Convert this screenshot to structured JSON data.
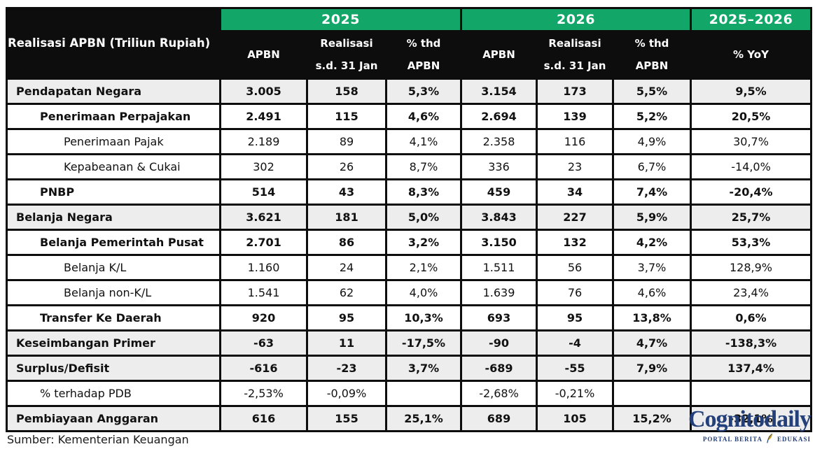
{
  "table": {
    "corner_label": "Realisasi APBN (Triliun Rupiah)",
    "year_groups": [
      "2025",
      "2026",
      "2025–2026"
    ],
    "sub_columns": [
      "APBN",
      "Realisasi\ns.d. 31 Jan",
      "% thd\nAPBN",
      "APBN",
      "Realisasi\ns.d. 31 Jan",
      "% thd\nAPBN",
      "% YoY"
    ]
  },
  "chart_data": {
    "type": "table",
    "title": "Realisasi APBN (Triliun Rupiah)",
    "column_groups": [
      "2025",
      "2026",
      "2025–2026"
    ],
    "columns": [
      "APBN",
      "Realisasi s.d. 31 Jan",
      "% thd APBN",
      "APBN",
      "Realisasi s.d. 31 Jan",
      "% thd APBN",
      "% YoY"
    ],
    "rows": [
      {
        "label": "Pendapatan Negara",
        "indent": 0,
        "bold": true,
        "shaded": true,
        "values": [
          "3.005",
          "158",
          "5,3%",
          "3.154",
          "173",
          "5,5%",
          "9,5%"
        ]
      },
      {
        "label": "Penerimaan Perpajakan",
        "indent": 1,
        "bold": true,
        "shaded": false,
        "values": [
          "2.491",
          "115",
          "4,6%",
          "2.694",
          "139",
          "5,2%",
          "20,5%"
        ]
      },
      {
        "label": "Penerimaan Pajak",
        "indent": 2,
        "bold": false,
        "shaded": false,
        "values": [
          "2.189",
          "89",
          "4,1%",
          "2.358",
          "116",
          "4,9%",
          "30,7%"
        ]
      },
      {
        "label": "Kepabeanan & Cukai",
        "indent": 2,
        "bold": false,
        "shaded": false,
        "values": [
          "302",
          "26",
          "8,7%",
          "336",
          "23",
          "6,7%",
          "-14,0%"
        ]
      },
      {
        "label": "PNBP",
        "indent": 1,
        "bold": true,
        "shaded": false,
        "values": [
          "514",
          "43",
          "8,3%",
          "459",
          "34",
          "7,4%",
          "-20,4%"
        ]
      },
      {
        "label": "Belanja Negara",
        "indent": 0,
        "bold": true,
        "shaded": true,
        "values": [
          "3.621",
          "181",
          "5,0%",
          "3.843",
          "227",
          "5,9%",
          "25,7%"
        ]
      },
      {
        "label": "Belanja Pemerintah Pusat",
        "indent": 1,
        "bold": true,
        "shaded": false,
        "values": [
          "2.701",
          "86",
          "3,2%",
          "3.150",
          "132",
          "4,2%",
          "53,3%"
        ]
      },
      {
        "label": "Belanja K/L",
        "indent": 2,
        "bold": false,
        "shaded": false,
        "values": [
          "1.160",
          "24",
          "2,1%",
          "1.511",
          "56",
          "3,7%",
          "128,9%"
        ]
      },
      {
        "label": "Belanja non-K/L",
        "indent": 2,
        "bold": false,
        "shaded": false,
        "values": [
          "1.541",
          "62",
          "4,0%",
          "1.639",
          "76",
          "4,6%",
          "23,4%"
        ]
      },
      {
        "label": "Transfer Ke Daerah",
        "indent": 1,
        "bold": true,
        "shaded": false,
        "values": [
          "920",
          "95",
          "10,3%",
          "693",
          "95",
          "13,8%",
          "0,6%"
        ]
      },
      {
        "label": "Keseimbangan Primer",
        "indent": 0,
        "bold": true,
        "shaded": true,
        "values": [
          "-63",
          "11",
          "-17,5%",
          "-90",
          "-4",
          "4,7%",
          "-138,3%"
        ]
      },
      {
        "label": "Surplus/Defisit",
        "indent": 0,
        "bold": true,
        "shaded": true,
        "values": [
          "-616",
          "-23",
          "3,7%",
          "-689",
          "-55",
          "7,9%",
          "137,4%"
        ]
      },
      {
        "label": "% terhadap PDB",
        "indent": 1,
        "bold": false,
        "shaded": false,
        "values": [
          "-2,53%",
          "-0,09%",
          "",
          "-2,68%",
          "-0,21%",
          "",
          ""
        ]
      },
      {
        "label": "Pembiayaan Anggaran",
        "indent": 0,
        "bold": true,
        "shaded": true,
        "values": [
          "616",
          "155",
          "25,1%",
          "689",
          "105",
          "15,2%",
          "-32,1%"
        ]
      }
    ],
    "source": "Sumber: Kementerian Keuangan"
  },
  "footer": {
    "source_note": "Sumber: Kementerian Keuangan"
  },
  "logo": {
    "wordmark": "Cognitodaily",
    "tagline_left": "PORTAL BERITA",
    "tagline_right": "EDUKASI",
    "feather_icon": "quill-feather"
  },
  "colors": {
    "accent_green": "#12a768",
    "header_black": "#0d0d0d",
    "row_shaded": "#ededee",
    "logo_navy": "#24407a",
    "feather_gold": "#c9a227"
  }
}
